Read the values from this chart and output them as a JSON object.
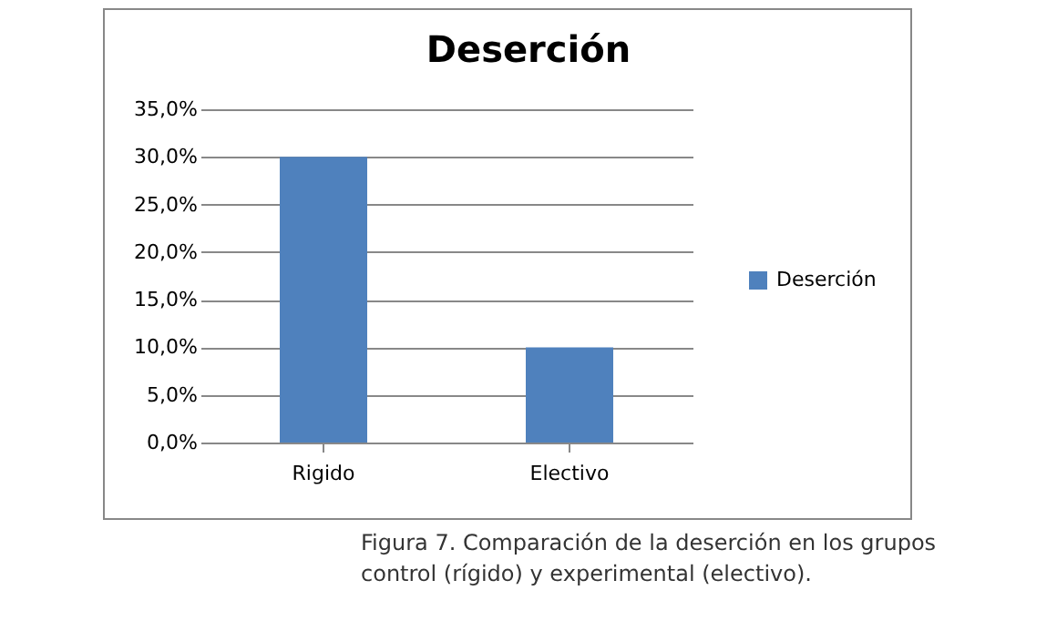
{
  "chart_data": {
    "type": "bar",
    "title": "Deserción",
    "categories": [
      "Rigido",
      "Electivo"
    ],
    "series": [
      {
        "name": "Deserción",
        "color": "#4f81bd",
        "values": [
          30,
          10
        ]
      }
    ],
    "ylim": [
      0,
      35
    ],
    "yticks": [
      {
        "value": 0,
        "label": "0,0%"
      },
      {
        "value": 5,
        "label": "5,0%"
      },
      {
        "value": 10,
        "label": "10,0%"
      },
      {
        "value": 15,
        "label": "15,0%"
      },
      {
        "value": 20,
        "label": "20,0%"
      },
      {
        "value": 25,
        "label": "25,0%"
      },
      {
        "value": 30,
        "label": "30,0%"
      },
      {
        "value": 35,
        "label": "35,0%"
      }
    ],
    "grid": "y",
    "legend": "right",
    "annotations": [
      "Figura 7. Comparación de la deserción en los grupos control (rígido) y experimental (electivo)."
    ]
  }
}
